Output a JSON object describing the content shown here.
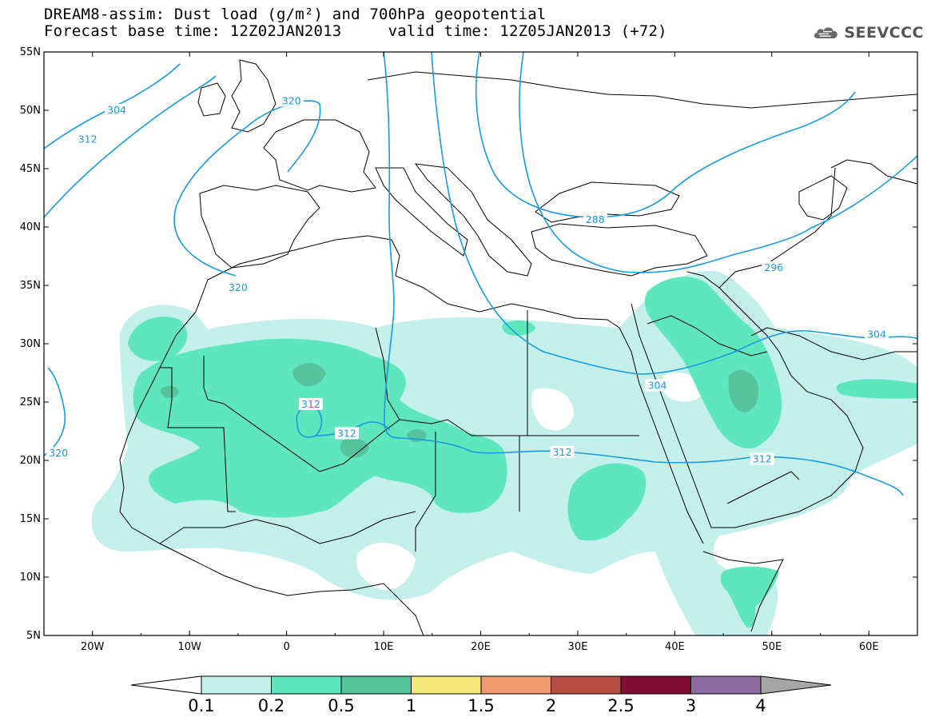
{
  "title": {
    "line1": "DREAM8-assim: Dust load (g/m²) and 700hPa geopotential",
    "line2": "Forecast base time: 12Z02JAN2013     valid time: 12Z05JAN2013 (+72)"
  },
  "logo": {
    "text": "SEEVCCC",
    "icon": "cloud-icon",
    "color": "#555555"
  },
  "map": {
    "lon_range": [
      -25,
      65
    ],
    "lat_range": [
      5,
      55
    ],
    "lon_ticks": [
      {
        "value": -20,
        "label": "20W"
      },
      {
        "value": -10,
        "label": "10W"
      },
      {
        "value": 0,
        "label": "0"
      },
      {
        "value": 10,
        "label": "10E"
      },
      {
        "value": 20,
        "label": "20E"
      },
      {
        "value": 30,
        "label": "30E"
      },
      {
        "value": 40,
        "label": "40E"
      },
      {
        "value": 50,
        "label": "50E"
      },
      {
        "value": 60,
        "label": "60E"
      }
    ],
    "lat_ticks": [
      {
        "value": 55,
        "label": "55N"
      },
      {
        "value": 50,
        "label": "50N"
      },
      {
        "value": 45,
        "label": "45N"
      },
      {
        "value": 40,
        "label": "40N"
      },
      {
        "value": 35,
        "label": "35N"
      },
      {
        "value": 30,
        "label": "30N"
      },
      {
        "value": 25,
        "label": "25N"
      },
      {
        "value": 20,
        "label": "20N"
      },
      {
        "value": 15,
        "label": "15N"
      },
      {
        "value": 10,
        "label": "10N"
      },
      {
        "value": 5,
        "label": "5N"
      }
    ],
    "contour_color": "#1a9ae0",
    "contour_labels": [
      {
        "text": "304",
        "lon": -17.5,
        "lat": 50.0
      },
      {
        "text": "312",
        "lon": -20.5,
        "lat": 47.5
      },
      {
        "text": "320",
        "lon": 0.5,
        "lat": 50.8
      },
      {
        "text": "320",
        "lon": -5.0,
        "lat": 34.8
      },
      {
        "text": "320",
        "lon": -23.5,
        "lat": 20.6
      },
      {
        "text": "312",
        "lon": 2.5,
        "lat": 24.8
      },
      {
        "text": "312",
        "lon": 6.2,
        "lat": 22.3
      },
      {
        "text": "312",
        "lon": 28.4,
        "lat": 20.7
      },
      {
        "text": "312",
        "lon": 49.0,
        "lat": 20.1
      },
      {
        "text": "288",
        "lon": 31.8,
        "lat": 40.6
      },
      {
        "text": "296",
        "lon": 50.2,
        "lat": 36.5
      },
      {
        "text": "304",
        "lon": 38.2,
        "lat": 26.4
      },
      {
        "text": "304",
        "lon": 60.8,
        "lat": 30.8
      }
    ]
  },
  "colorbar": {
    "labels": [
      "0.1",
      "0.2",
      "0.5",
      "1",
      "1.5",
      "2",
      "2.5",
      "3",
      "4"
    ],
    "colors": [
      "#c3f0ea",
      "#5ee6bd",
      "#56c39c",
      "#f5e97c",
      "#ef9a6e",
      "#b54d43",
      "#830c34",
      "#8d6aa0"
    ],
    "under_color": "#ffffff",
    "over_color": "#a6a6a6"
  }
}
